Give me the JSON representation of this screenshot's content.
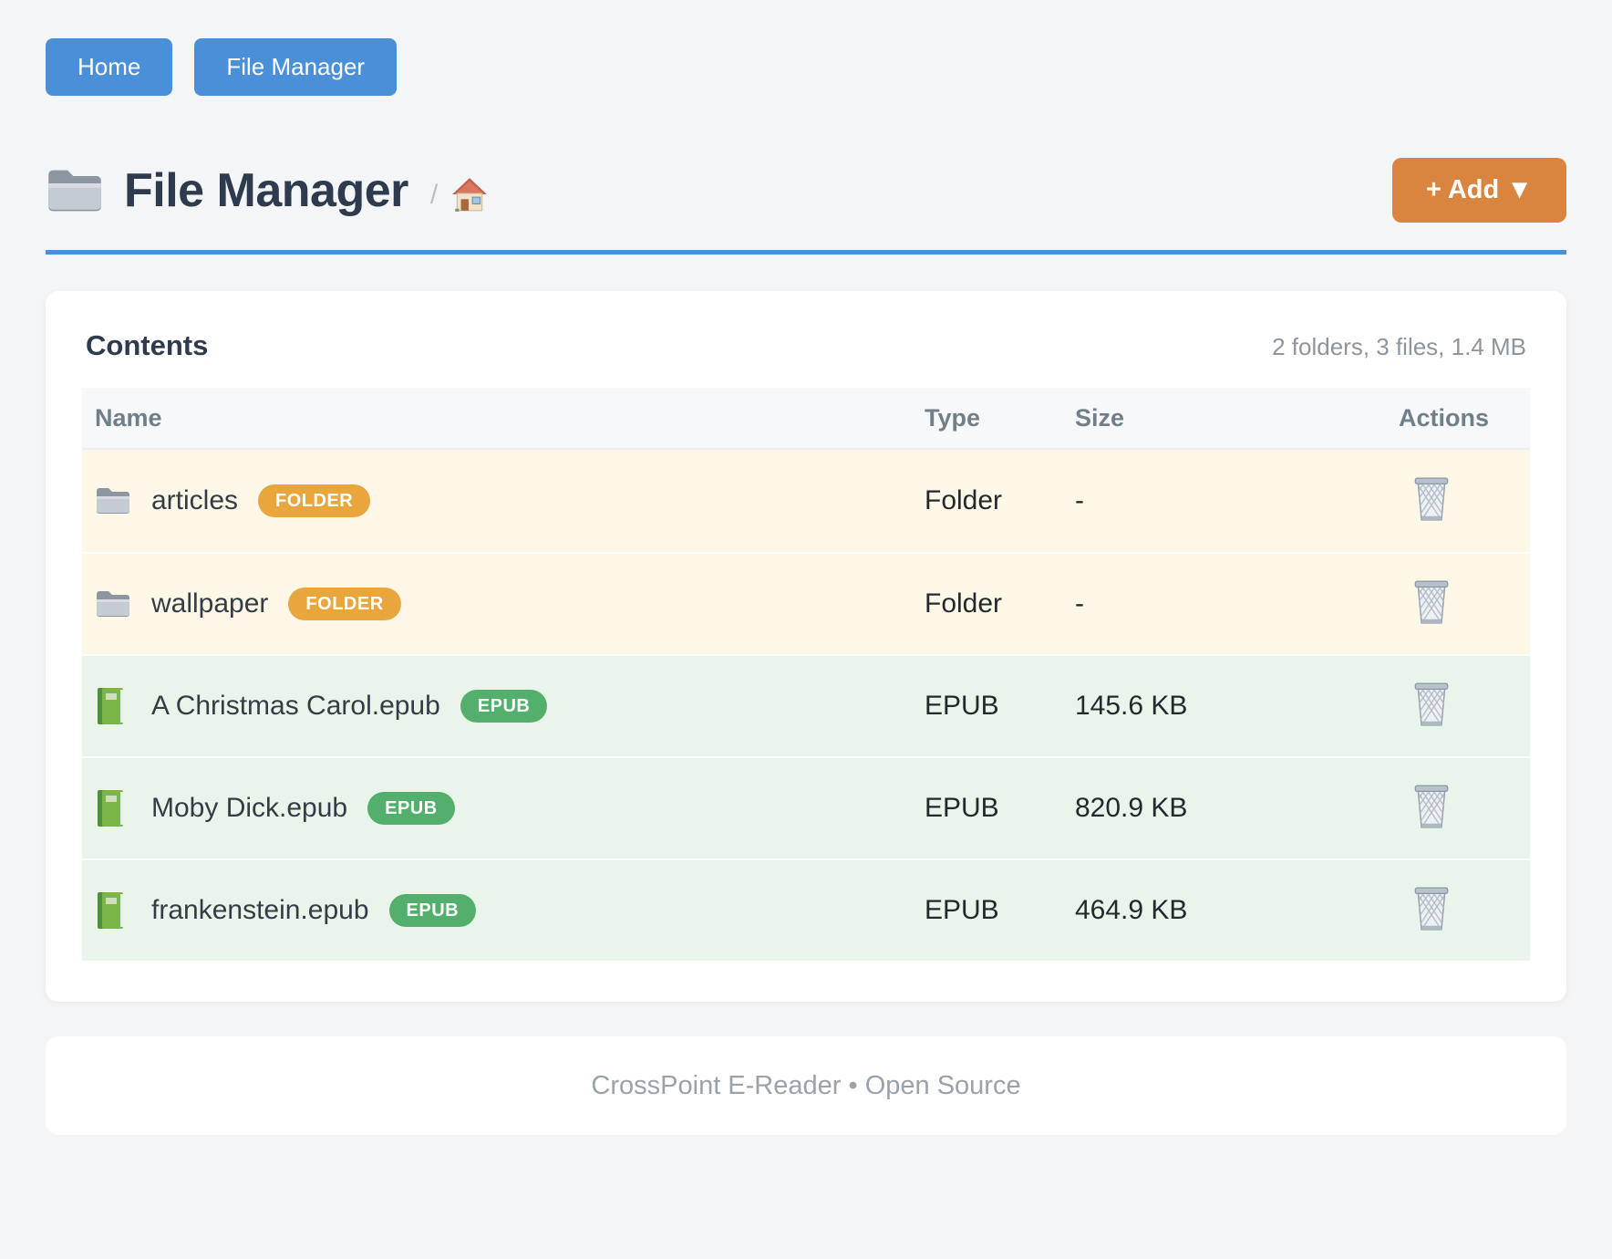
{
  "nav": {
    "buttons": [
      {
        "label": "Home"
      },
      {
        "label": "File Manager"
      }
    ]
  },
  "header": {
    "title": "File Manager",
    "breadcrumb_separator": "/",
    "add_button_label": "+ Add ▼"
  },
  "contents": {
    "heading": "Contents",
    "summary": "2 folders, 3 files, 1.4 MB",
    "columns": [
      "Name",
      "Type",
      "Size",
      "Actions"
    ],
    "rows": [
      {
        "name": "articles",
        "badge": "FOLDER",
        "type": "Folder",
        "size": "-",
        "kind": "folder",
        "icon": "folder-icon"
      },
      {
        "name": "wallpaper",
        "badge": "FOLDER",
        "type": "Folder",
        "size": "-",
        "kind": "folder",
        "icon": "folder-icon"
      },
      {
        "name": "A Christmas Carol.epub",
        "badge": "EPUB",
        "type": "EPUB",
        "size": "145.6 KB",
        "kind": "epub",
        "icon": "book-icon"
      },
      {
        "name": "Moby Dick.epub",
        "badge": "EPUB",
        "type": "EPUB",
        "size": "820.9 KB",
        "kind": "epub",
        "icon": "book-icon"
      },
      {
        "name": "frankenstein.epub",
        "badge": "EPUB",
        "type": "EPUB",
        "size": "464.9 KB",
        "kind": "epub",
        "icon": "book-icon"
      }
    ]
  },
  "footer": {
    "text": "CrossPoint E-Reader • Open Source"
  },
  "colors": {
    "primary_blue": "#4a90d9",
    "accent_orange": "#d9853f",
    "folder_badge_orange": "#e9a63c",
    "epub_badge_green": "#52b06c",
    "folder_row_bg": "#fdf7e7",
    "epub_row_bg": "#e9f4ea"
  }
}
